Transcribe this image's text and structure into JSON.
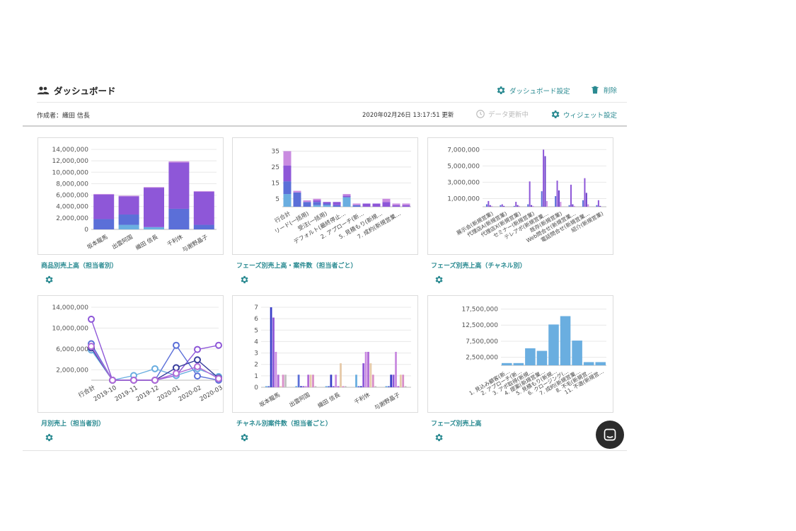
{
  "header": {
    "title": "ダッシュボード",
    "settings_label": "ダッシュボード設定",
    "delete_label": "削除",
    "creator": "作成者：織田 信長",
    "updated": "2020年02月26日 13:17:51 更新",
    "refresh_label": "データ更新中",
    "widget_settings_label": "ウィジェット設定"
  },
  "icons": {
    "people": "people-icon",
    "gear": "gear-icon",
    "trash": "trash-icon",
    "clock": "clock-icon",
    "chat": "chat-icon"
  },
  "colors": {
    "accent": "#2a8a91",
    "bar_purple": "#8e57d8",
    "bar_blue": "#5b6fd8",
    "bar_light": "#6aaee0",
    "bar_pink": "#c98be0",
    "bar_tan": "#e6c9a8"
  },
  "widgets": [
    {
      "title": "商品別売上高（担当者別）"
    },
    {
      "title": "フェーズ別売上高・案件数（担当者ごと）"
    },
    {
      "title": "フェーズ別売上高（チャネル別）"
    },
    {
      "title": "月別売上（担当者別）"
    },
    {
      "title": "チャネル別案件数（担当者ごと）"
    },
    {
      "title": "フェーズ別売上高"
    }
  ],
  "chart_data": [
    {
      "type": "bar",
      "stacked": true,
      "yticks": [
        "14,000,000",
        "12,000,000",
        "10,000,000",
        "8,000,000",
        "6,000,000",
        "4,000,000",
        "2,000,000",
        "0"
      ],
      "ylim": [
        0,
        14000000
      ],
      "categories": [
        "坂本龍馬",
        "出雲阿国",
        "織田 信長",
        "千利休",
        "与謝野晶子"
      ],
      "series": [
        {
          "color": "#6aaee0",
          "values": [
            0,
            800000,
            400000,
            0,
            0
          ]
        },
        {
          "color": "#5b6fd8",
          "values": [
            1800000,
            1800000,
            0,
            3600000,
            800000
          ]
        },
        {
          "color": "#8e57d8",
          "values": [
            4300000,
            3200000,
            6900000,
            8100000,
            5800000
          ]
        },
        {
          "color": "#c98be0",
          "values": [
            100000,
            100000,
            100000,
            200000,
            100000
          ]
        }
      ]
    },
    {
      "type": "bar",
      "stacked": true,
      "yticks": [
        "35",
        "25",
        "15",
        "5"
      ],
      "ytick_values": [
        35,
        25,
        15,
        5
      ],
      "ylim": [
        0,
        37
      ],
      "categories": [
        "行合計",
        "リード(一括用)",
        "受注(一括用)",
        "デフォルト(最終停止…",
        "2. アプローチ(新…",
        "5. 見積もり(新規…",
        "7. 成約(新規営業…"
      ],
      "bars": [
        [
          8,
          8,
          10,
          9
        ],
        [
          0,
          9,
          0,
          1
        ],
        [
          0,
          3,
          0,
          1
        ],
        [
          1,
          2,
          1,
          1
        ],
        [
          1,
          1,
          1,
          0
        ],
        [
          0,
          1,
          2,
          0
        ],
        [
          6,
          0,
          1,
          1
        ],
        [
          0,
          1,
          0,
          1
        ],
        [
          0,
          0,
          2,
          0
        ],
        [
          0,
          0,
          2,
          0
        ],
        [
          0,
          0,
          3,
          2
        ],
        [
          0,
          0,
          1,
          1
        ],
        [
          0,
          0,
          1,
          1
        ]
      ],
      "colors": [
        "#6aaee0",
        "#5b6fd8",
        "#8e57d8",
        "#c98be0"
      ]
    },
    {
      "type": "bar",
      "grouped": true,
      "yticks": [
        "7,000,000",
        "5,000,000",
        "3,000,000",
        "1,000,000"
      ],
      "ytick_values": [
        7000000,
        5000000,
        3000000,
        1000000
      ],
      "ylim": [
        0,
        7200000
      ],
      "categories": [
        "展示会(新規営業)",
        "代理店A(新規営業)",
        "代理店X(新規営業)",
        "セミナー(新規営業)",
        "テレアポ(新規営業…",
        "既存(新規営業)",
        "Web問合せ(新規営業…",
        "電話問合せ(新規営業…",
        "紹介(新規営業)"
      ],
      "groups": [
        [
          300000,
          700000,
          200000,
          100000
        ],
        [
          200000,
          300000,
          100000,
          0
        ],
        [
          100000,
          600000,
          200000,
          100000
        ],
        [
          300000,
          3100000,
          200000,
          100000
        ],
        [
          1900000,
          7000000,
          6200000,
          700000
        ],
        [
          1300000,
          3200000,
          2000000,
          600000
        ],
        [
          200000,
          2700000,
          300000,
          100000
        ],
        [
          800000,
          3500000,
          1700000,
          300000
        ],
        [
          200000,
          800000,
          100000,
          0
        ]
      ],
      "colors": [
        "#5b6fd8",
        "#8e57d8",
        "#6b3fc8",
        "#c98be0"
      ]
    },
    {
      "type": "line",
      "yticks": [
        "14,000,000",
        "10,000,000",
        "6,000,000",
        "2,000,000"
      ],
      "ytick_values": [
        14000000,
        10000000,
        6000000,
        2000000
      ],
      "ylim": [
        0,
        14000000
      ],
      "categories": [
        "行合計",
        "2019-10",
        "2019-11",
        "2019-12",
        "2020-01",
        "2020-02",
        "2020-03"
      ],
      "series": [
        {
          "color": "#8e57d8",
          "values": [
            11700000,
            0,
            0,
            0,
            900000,
            5900000,
            6700000
          ]
        },
        {
          "color": "#5b6fd8",
          "values": [
            7000000,
            0,
            0,
            0,
            6700000,
            800000,
            0
          ]
        },
        {
          "color": "#6aaee0",
          "values": [
            5800000,
            0,
            900000,
            2200000,
            900000,
            2200000,
            700000
          ]
        },
        {
          "color": "#3a3f9e",
          "values": [
            6200000,
            0,
            0,
            0,
            2400000,
            3900000,
            400000
          ]
        },
        {
          "color": "#b06ad8",
          "values": [
            6500000,
            0,
            0,
            0,
            1300000,
            2600000,
            300000
          ]
        }
      ]
    },
    {
      "type": "bar",
      "grouped": true,
      "yticks": [
        "7",
        "6",
        "5",
        "4",
        "3",
        "2",
        "1",
        "0"
      ],
      "ytick_values": [
        7,
        6,
        5,
        4,
        3,
        2,
        1,
        0
      ],
      "ylim": [
        0,
        7
      ],
      "categories": [
        "坂本龍馬",
        "出雲阿国",
        "織田 信長",
        "千利休",
        "与謝野晶子"
      ],
      "groups": [
        [
          0.1,
          0.1,
          7,
          6.1,
          3.1,
          1.1,
          0.1,
          1.1,
          1.1
        ],
        [
          0.1,
          1.1,
          0.1,
          0.1,
          0.1,
          1.1,
          1.1,
          1.1,
          0.1
        ],
        [
          0.1,
          0.1,
          1.1,
          0.1,
          1.1,
          0.1,
          2.1,
          0.1,
          0.1
        ],
        [
          1.1,
          0.1,
          0.1,
          2.1,
          3.1,
          3.1,
          2.1,
          1.1,
          0.1
        ],
        [
          0.1,
          0.1,
          1.1,
          1.1,
          3.1,
          0.1,
          1.1,
          1.1,
          0.1
        ]
      ],
      "colors": [
        "#6aaee0",
        "#5b6fd8",
        "#3a3fc8",
        "#8e57d8",
        "#c98be0",
        "#b06ad8",
        "#e6c9a8",
        "#d88ec8",
        "#c0c0c0"
      ]
    },
    {
      "type": "bar",
      "yticks": [
        "17,500,000",
        "12,500,000",
        "7,500,000",
        "2,500,000"
      ],
      "ytick_values": [
        17500000,
        12500000,
        7500000,
        2500000
      ],
      "ylim": [
        0,
        18500000
      ],
      "categories": [
        "1. 見込み顧客(新…",
        "2. アプローチ(新…",
        "3. アポ取得(新規…",
        "4. 提案(新規営業…",
        "5. 見積もり(新規…",
        "6. クロージング(…",
        "7. 成約(新規営業…",
        "8. 不毛(新規営…",
        "11. 不適(新規営…"
      ],
      "values": [
        700000,
        700000,
        5300000,
        4500000,
        12700000,
        15300000,
        7700000,
        1000000,
        1000000
      ],
      "color": "#6aaee0"
    }
  ]
}
